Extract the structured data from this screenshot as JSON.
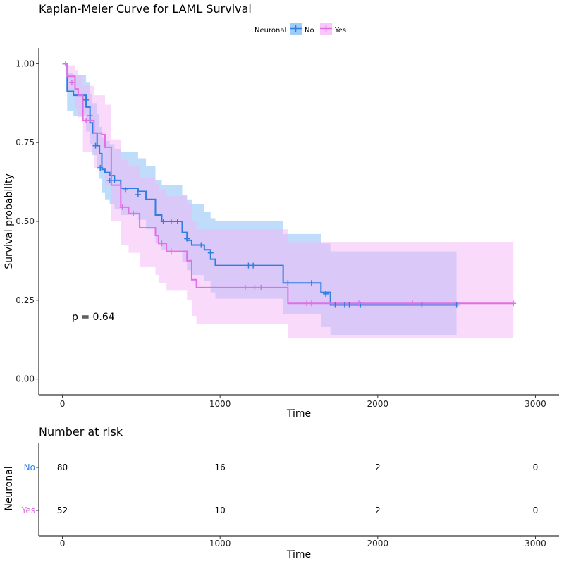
{
  "chart_data": {
    "type": "line",
    "subtype": "kaplan-meier",
    "title": "Kaplan-Meier Curve for LAML Survival",
    "xlabel": "Time",
    "ylabel": "Survival probability",
    "xlim": [
      -150,
      3150
    ],
    "ylim": [
      -0.05,
      1.05
    ],
    "x_ticks": [
      0,
      1000,
      2000,
      3000
    ],
    "y_ticks": [
      0,
      0.25,
      0.5,
      0.75,
      1.0
    ],
    "y_tick_labels": [
      "0.00",
      "0.25",
      "0.50",
      "0.75",
      "1.00"
    ],
    "grid": false,
    "legend_title": "Neuronal",
    "legend_position": "top",
    "p_value_label": "p = 0.64",
    "series": [
      {
        "name": "No",
        "color": "#2f7de1",
        "fill_color": "#7fbcf5",
        "steps": [
          [
            0,
            1.0
          ],
          [
            30,
            0.9125
          ],
          [
            70,
            0.9
          ],
          [
            150,
            0.8625
          ],
          [
            175,
            0.8125
          ],
          [
            190,
            0.78
          ],
          [
            220,
            0.74
          ],
          [
            235,
            0.715
          ],
          [
            250,
            0.665
          ],
          [
            270,
            0.655
          ],
          [
            300,
            0.645
          ],
          [
            330,
            0.63
          ],
          [
            370,
            0.605
          ],
          [
            480,
            0.595
          ],
          [
            530,
            0.57
          ],
          [
            590,
            0.52
          ],
          [
            630,
            0.5
          ],
          [
            760,
            0.465
          ],
          [
            790,
            0.44
          ],
          [
            820,
            0.425
          ],
          [
            900,
            0.41
          ],
          [
            940,
            0.38
          ],
          [
            970,
            0.36
          ],
          [
            1400,
            0.305
          ],
          [
            1640,
            0.275
          ],
          [
            1700,
            0.235
          ],
          [
            2500,
            0.235
          ]
        ],
        "ci_upper": [
          [
            0,
            1.0
          ],
          [
            30,
            0.97
          ],
          [
            70,
            0.965
          ],
          [
            150,
            0.94
          ],
          [
            175,
            0.905
          ],
          [
            190,
            0.875
          ],
          [
            220,
            0.84
          ],
          [
            235,
            0.8
          ],
          [
            250,
            0.765
          ],
          [
            270,
            0.755
          ],
          [
            300,
            0.745
          ],
          [
            330,
            0.73
          ],
          [
            370,
            0.72
          ],
          [
            480,
            0.7
          ],
          [
            530,
            0.675
          ],
          [
            590,
            0.63
          ],
          [
            630,
            0.615
          ],
          [
            760,
            0.585
          ],
          [
            790,
            0.57
          ],
          [
            820,
            0.555
          ],
          [
            900,
            0.53
          ],
          [
            940,
            0.51
          ],
          [
            970,
            0.5
          ],
          [
            1400,
            0.46
          ],
          [
            1640,
            0.43
          ],
          [
            1700,
            0.405
          ],
          [
            2500,
            0.405
          ]
        ],
        "ci_lower": [
          [
            0,
            1.0
          ],
          [
            30,
            0.85
          ],
          [
            70,
            0.835
          ],
          [
            150,
            0.785
          ],
          [
            175,
            0.745
          ],
          [
            190,
            0.71
          ],
          [
            220,
            0.665
          ],
          [
            235,
            0.635
          ],
          [
            250,
            0.59
          ],
          [
            270,
            0.57
          ],
          [
            300,
            0.555
          ],
          [
            330,
            0.54
          ],
          [
            370,
            0.52
          ],
          [
            480,
            0.505
          ],
          [
            530,
            0.475
          ],
          [
            590,
            0.43
          ],
          [
            630,
            0.41
          ],
          [
            760,
            0.37
          ],
          [
            790,
            0.345
          ],
          [
            820,
            0.33
          ],
          [
            900,
            0.31
          ],
          [
            940,
            0.275
          ],
          [
            970,
            0.255
          ],
          [
            1400,
            0.205
          ],
          [
            1640,
            0.165
          ],
          [
            1700,
            0.14
          ],
          [
            2500,
            0.14
          ]
        ],
        "censored": [
          [
            150,
            0.885
          ],
          [
            175,
            0.835
          ],
          [
            210,
            0.74
          ],
          [
            240,
            0.67
          ],
          [
            300,
            0.63
          ],
          [
            330,
            0.63
          ],
          [
            400,
            0.6
          ],
          [
            480,
            0.585
          ],
          [
            640,
            0.5
          ],
          [
            690,
            0.5
          ],
          [
            730,
            0.5
          ],
          [
            790,
            0.445
          ],
          [
            880,
            0.425
          ],
          [
            940,
            0.4
          ],
          [
            1180,
            0.36
          ],
          [
            1210,
            0.36
          ],
          [
            1430,
            0.305
          ],
          [
            1580,
            0.305
          ],
          [
            1670,
            0.27
          ],
          [
            1730,
            0.235
          ],
          [
            1790,
            0.235
          ],
          [
            1820,
            0.235
          ],
          [
            1890,
            0.235
          ],
          [
            2280,
            0.235
          ],
          [
            2500,
            0.235
          ]
        ]
      },
      {
        "name": "Yes",
        "color": "#e06ee6",
        "fill_color": "#f5b6f5",
        "steps": [
          [
            0,
            1.0
          ],
          [
            30,
            0.96
          ],
          [
            80,
            0.92
          ],
          [
            100,
            0.9
          ],
          [
            130,
            0.82
          ],
          [
            200,
            0.78
          ],
          [
            250,
            0.775
          ],
          [
            270,
            0.735
          ],
          [
            310,
            0.615
          ],
          [
            370,
            0.545
          ],
          [
            420,
            0.525
          ],
          [
            490,
            0.48
          ],
          [
            590,
            0.455
          ],
          [
            610,
            0.43
          ],
          [
            660,
            0.405
          ],
          [
            790,
            0.375
          ],
          [
            820,
            0.315
          ],
          [
            850,
            0.29
          ],
          [
            1430,
            0.24
          ],
          [
            2860,
            0.24
          ]
        ],
        "ci_upper": [
          [
            0,
            1.0
          ],
          [
            30,
            0.995
          ],
          [
            80,
            0.98
          ],
          [
            100,
            0.965
          ],
          [
            130,
            0.93
          ],
          [
            200,
            0.9
          ],
          [
            250,
            0.9
          ],
          [
            270,
            0.87
          ],
          [
            310,
            0.76
          ],
          [
            370,
            0.695
          ],
          [
            420,
            0.675
          ],
          [
            490,
            0.64
          ],
          [
            590,
            0.62
          ],
          [
            610,
            0.6
          ],
          [
            660,
            0.58
          ],
          [
            790,
            0.555
          ],
          [
            820,
            0.5
          ],
          [
            850,
            0.475
          ],
          [
            1430,
            0.435
          ],
          [
            2860,
            0.435
          ]
        ],
        "ci_lower": [
          [
            0,
            1.0
          ],
          [
            30,
            0.91
          ],
          [
            80,
            0.86
          ],
          [
            100,
            0.83
          ],
          [
            130,
            0.72
          ],
          [
            200,
            0.67
          ],
          [
            250,
            0.66
          ],
          [
            270,
            0.615
          ],
          [
            310,
            0.5
          ],
          [
            370,
            0.425
          ],
          [
            420,
            0.4
          ],
          [
            490,
            0.355
          ],
          [
            590,
            0.33
          ],
          [
            610,
            0.305
          ],
          [
            660,
            0.28
          ],
          [
            790,
            0.25
          ],
          [
            820,
            0.2
          ],
          [
            850,
            0.175
          ],
          [
            1430,
            0.13
          ],
          [
            2860,
            0.13
          ]
        ],
        "censored": [
          [
            20,
            1.0
          ],
          [
            60,
            0.94
          ],
          [
            150,
            0.82
          ],
          [
            380,
            0.545
          ],
          [
            450,
            0.525
          ],
          [
            630,
            0.43
          ],
          [
            690,
            0.405
          ],
          [
            1160,
            0.29
          ],
          [
            1220,
            0.29
          ],
          [
            1260,
            0.29
          ],
          [
            1550,
            0.24
          ],
          [
            1580,
            0.24
          ],
          [
            1880,
            0.24
          ],
          [
            2220,
            0.24
          ],
          [
            2860,
            0.24
          ]
        ]
      }
    ],
    "risk_table": {
      "title": "Number at risk",
      "ylabel": "Neuronal",
      "xlabel": "Time",
      "times": [
        0,
        1000,
        2000,
        3000
      ],
      "rows": [
        {
          "name": "No",
          "color": "#2f7de1",
          "values": [
            80,
            16,
            2,
            0
          ]
        },
        {
          "name": "Yes",
          "color": "#e06ee6",
          "values": [
            52,
            10,
            2,
            0
          ]
        }
      ]
    }
  }
}
